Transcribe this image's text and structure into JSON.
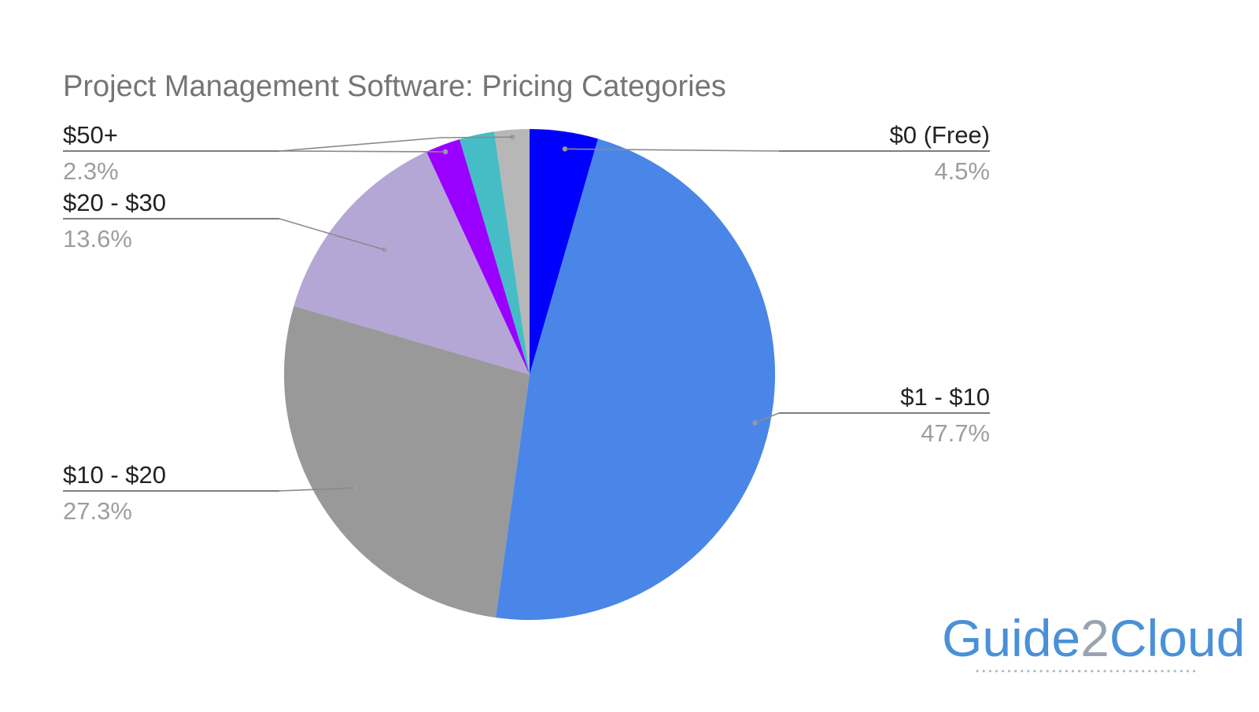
{
  "chart_data": {
    "type": "pie",
    "title": "Project Management Software: Pricing Categories",
    "slices": [
      {
        "label": "$0 (Free)",
        "value": 4.5,
        "display": "4.5%",
        "color": "#0000ff"
      },
      {
        "label": "$1 - $10",
        "value": 47.7,
        "display": "47.7%",
        "color": "#4a86e8"
      },
      {
        "label": "$10 - $20",
        "value": 27.3,
        "display": "27.3%",
        "color": "#999999"
      },
      {
        "label": "$20 - $30",
        "value": 13.6,
        "display": "13.6%",
        "color": "#b4a7d6"
      },
      {
        "label": "$50+",
        "value": 2.3,
        "display": "2.3%",
        "color": "#9900ff"
      },
      {
        "label": "",
        "value": 2.3,
        "display": "",
        "color": "#46bdc6"
      },
      {
        "label": "",
        "value": 2.3,
        "display": "",
        "color": "#b7b7b7"
      }
    ],
    "start_angle_deg": 0,
    "direction": "clockwise",
    "legend": "none (labels with leader lines)"
  },
  "watermark": {
    "text_part1": "Guide",
    "text_part2": "2",
    "text_part3": "Cloud",
    "color_main": "#4a90d9",
    "color_digit": "#9aa4b0"
  }
}
